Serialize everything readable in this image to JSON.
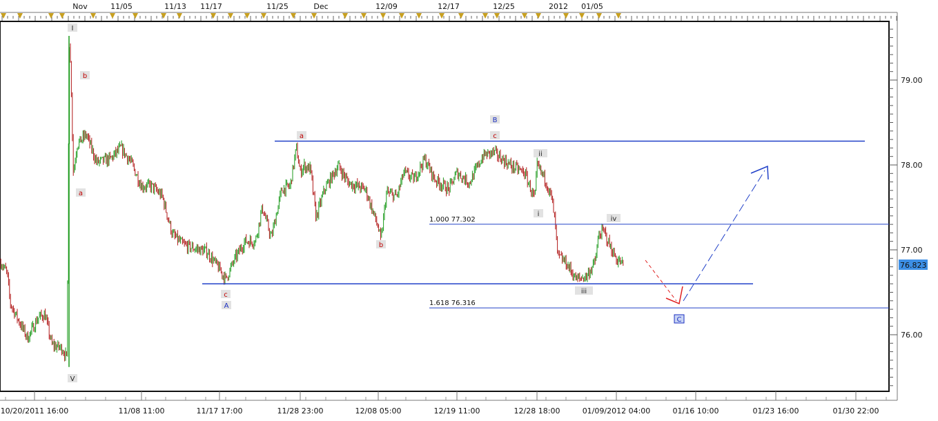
{
  "chart_data": {
    "type": "candlestick",
    "top_axis_labels": [
      "Nov",
      "11/05",
      "11/13",
      "11/17",
      "11/25",
      "Dec",
      "12/09",
      "12/17",
      "12/25",
      "2012",
      "01/05"
    ],
    "x_tick_labels": [
      "10/20/2011 16:00",
      "11/08 11:00",
      "11/17 17:00",
      "11/28 23:00",
      "12/08 05:00",
      "12/19 11:00",
      "12/28 18:00",
      "01/09/2012 04:00",
      "01/16 10:00",
      "01/23 16:00",
      "01/30 22:00"
    ],
    "y_tick_labels": [
      "79.00",
      "78.00",
      "77.00",
      "76.00"
    ],
    "y_ticks": [
      79,
      78,
      77,
      76
    ],
    "ylim": [
      75.3,
      79.7
    ],
    "last_price": "76.823",
    "colors": {
      "up": "#1a9a1a",
      "down": "#b01818",
      "levels": "#2040c8",
      "last_price_bg": "#3d8fe6",
      "projection_down": "#e02020",
      "projection_up": "#2040c8"
    },
    "price_path": [
      [
        "2011-10-14 18:00",
        76.85
      ],
      [
        "2011-10-15 20:00",
        76.73
      ],
      [
        "2011-10-16 10:00",
        76.37
      ],
      [
        "2011-10-17 15:00",
        76.2
      ],
      [
        "2011-10-19 11:00",
        75.96
      ],
      [
        "2011-10-21 07:00",
        76.2
      ],
      [
        "2011-10-22 12:00",
        76.24
      ],
      [
        "2011-10-23 17:00",
        75.88
      ],
      [
        "2011-10-25 12:00",
        75.84
      ],
      [
        "2011-10-26 09:00",
        75.72
      ],
      [
        "2011-10-26 18:00",
        79.5
      ],
      [
        "2011-10-27 02:00",
        79.05
      ],
      [
        "2011-10-27 11:00",
        77.91
      ],
      [
        "2011-10-28 04:00",
        78.24
      ],
      [
        "2011-10-29 18:00",
        78.36
      ],
      [
        "2011-10-31 14:00",
        78.03
      ],
      [
        "2011-11-03 00:00",
        78.07
      ],
      [
        "2011-11-04 20:00",
        78.2
      ],
      [
        "2011-11-06 15:00",
        78.03
      ],
      [
        "2011-11-08 11:00",
        77.75
      ],
      [
        "2011-11-09 16:00",
        77.75
      ],
      [
        "2011-11-10 22:00",
        77.63
      ],
      [
        "2011-11-12 03:00",
        77.18
      ],
      [
        "2011-11-13 09:00",
        77.06
      ],
      [
        "2011-11-14 14:00",
        77.02
      ],
      [
        "2011-11-16 05:00",
        76.98
      ],
      [
        "2011-11-17 17:00",
        76.77
      ],
      [
        "2011-11-18 14:00",
        76.65
      ],
      [
        "2011-11-19 20:00",
        76.89
      ],
      [
        "2011-11-21 06:00",
        77.1
      ],
      [
        "2011-11-22 17:00",
        77.1
      ],
      [
        "2011-11-23 16:00",
        77.5
      ],
      [
        "2011-11-24 22:00",
        77.14
      ],
      [
        "2011-11-26 09:00",
        77.71
      ],
      [
        "2011-11-27 13:00",
        77.75
      ],
      [
        "2011-11-28 10:00",
        78.2
      ],
      [
        "2011-11-28 23:00",
        77.91
      ],
      [
        "2011-11-29 09:00",
        77.99
      ],
      [
        "2011-11-30 04:00",
        77.95
      ],
      [
        "2011-11-30 20:00",
        77.38
      ],
      [
        "2011-12-01 20:00",
        77.71
      ],
      [
        "2011-12-03 11:00",
        77.99
      ],
      [
        "2011-12-04 16:00",
        77.79
      ],
      [
        "2011-12-06 17:00",
        77.71
      ],
      [
        "2011-12-08 05:00",
        77.26
      ],
      [
        "2011-12-08 14:00",
        77.1
      ],
      [
        "2011-12-09 09:00",
        77.67
      ],
      [
        "2011-12-10 21:00",
        77.63
      ],
      [
        "2011-12-11 21:00",
        77.91
      ],
      [
        "2011-12-13 08:00",
        77.83
      ],
      [
        "2011-12-14 20:00",
        78.07
      ],
      [
        "2011-12-16 07:00",
        77.83
      ],
      [
        "2011-12-18 07:00",
        77.71
      ],
      [
        "2011-12-19 11:00",
        77.91
      ],
      [
        "2011-12-20 22:00",
        77.79
      ],
      [
        "2011-12-22 12:00",
        78.11
      ],
      [
        "2011-12-23 17:00",
        78.15
      ],
      [
        "2011-12-25 17:00",
        77.99
      ],
      [
        "2011-12-27 07:00",
        77.91
      ],
      [
        "2011-12-28 12:00",
        77.59
      ],
      [
        "2011-12-28 18:00",
        77.99
      ],
      [
        "2011-12-29 23:00",
        77.83
      ],
      [
        "2011-12-30 22:00",
        77.59
      ],
      [
        "2011-12-31 10:00",
        77.26
      ],
      [
        "2011-12-31 17:00",
        76.93
      ],
      [
        "2012-01-01 22:00",
        76.85
      ],
      [
        "2012-01-03 10:00",
        76.65
      ],
      [
        "2012-01-04 21:00",
        76.69
      ],
      [
        "2012-01-06 02:00",
        76.85
      ],
      [
        "2012-01-06 16:00",
        77.18
      ],
      [
        "2012-01-07 09:00",
        77.22
      ],
      [
        "2012-01-08 09:00",
        77.02
      ],
      [
        "2012-01-09 04:00",
        76.89
      ],
      [
        "2012-01-09 19:00",
        76.823
      ]
    ],
    "levels": [
      {
        "price": 78.28,
        "label": ""
      },
      {
        "price": 76.6,
        "label": ""
      },
      {
        "price": 77.302,
        "label": "1.000 77.302"
      },
      {
        "price": 76.316,
        "label": "1.618 76.316"
      }
    ],
    "wave_labels": [
      {
        "text": "I",
        "color": "#222"
      },
      {
        "text": "b",
        "color": "#c00000"
      },
      {
        "text": "a",
        "color": "#c00000"
      },
      {
        "text": "V",
        "color": "#222"
      },
      {
        "text": "c",
        "color": "#c00000"
      },
      {
        "text": "A",
        "color": "#1a2ec0"
      },
      {
        "text": "a",
        "color": "#c00000"
      },
      {
        "text": "B",
        "color": "#1a2ec0"
      },
      {
        "text": "c",
        "color": "#c00000"
      },
      {
        "text": "b",
        "color": "#c00000"
      },
      {
        "text": "ii",
        "color": "#222"
      },
      {
        "text": "i",
        "color": "#222"
      },
      {
        "text": "iv",
        "color": "#222"
      },
      {
        "text": "iii",
        "color": "#222"
      },
      {
        "text": "C",
        "color": "#1a2ec0"
      }
    ]
  }
}
